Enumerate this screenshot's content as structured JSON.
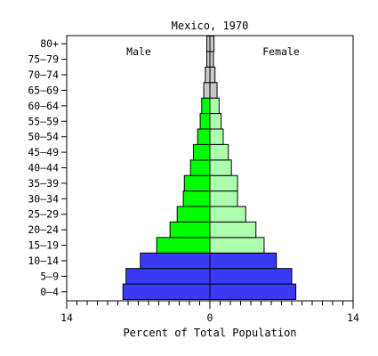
{
  "chart_data": {
    "type": "bar",
    "title": "Mexico, 1970",
    "xlabel": "Percent of Total Population",
    "ylabel": "",
    "xlim": [
      -14,
      14
    ],
    "x_tick_labels": [
      {
        "value": -14,
        "label": "14"
      },
      {
        "value": 0,
        "label": "0"
      },
      {
        "value": 14,
        "label": "14"
      }
    ],
    "minor_tick_step": 1,
    "grid": false,
    "legend": false,
    "side_labels": {
      "left": "Male",
      "right": "Female"
    },
    "categories": [
      "0–4",
      "5–9",
      "10–14",
      "15–19",
      "20–24",
      "25–29",
      "30–34",
      "35–39",
      "40–44",
      "45–49",
      "50–54",
      "55–59",
      "60–64",
      "65–69",
      "70–74",
      "75–79",
      "80+"
    ],
    "groups": [
      "young",
      "young",
      "young",
      "working",
      "working",
      "working",
      "working",
      "working",
      "working",
      "working",
      "working",
      "working",
      "working",
      "old",
      "old",
      "old",
      "old"
    ],
    "series": [
      {
        "name": "Male",
        "side": "left",
        "values": [
          8.5,
          8.2,
          6.8,
          5.2,
          3.9,
          3.2,
          2.6,
          2.5,
          1.9,
          1.6,
          1.2,
          0.95,
          0.8,
          0.6,
          0.45,
          0.3,
          0.3
        ]
      },
      {
        "name": "Female",
        "side": "right",
        "values": [
          8.4,
          8.0,
          6.5,
          5.3,
          4.5,
          3.5,
          2.7,
          2.7,
          2.1,
          1.8,
          1.3,
          1.1,
          0.9,
          0.7,
          0.5,
          0.35,
          0.4
        ]
      }
    ],
    "colors": {
      "young": "#3a3af5",
      "working_male": "#00ff00",
      "working_female": "#adffad",
      "old": "#c8c8c8",
      "outline": "#000000"
    }
  }
}
